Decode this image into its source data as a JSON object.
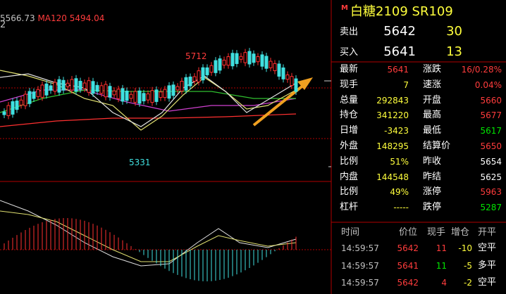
{
  "chart": {
    "axis_cut": "2",
    "ma_label": "5566.73",
    "ma120": "MA120 5494.04",
    "high_label": "5712",
    "low_label": "5331"
  },
  "quote": {
    "marker": "M",
    "title": "白糖2109  SR109",
    "ask": {
      "label": "卖出",
      "price": "5642",
      "volume": "30"
    },
    "bid": {
      "label": "买入",
      "price": "5641",
      "volume": "13"
    }
  },
  "stats": [
    [
      "最新",
      "5641",
      "涨跌",
      "16/0.28%"
    ],
    [
      "现手",
      "7",
      "速涨",
      "0.04%"
    ],
    [
      "总量",
      "292843",
      "开盘",
      "5660"
    ],
    [
      "持仓",
      "341220",
      "最高",
      "5677"
    ],
    [
      "日增",
      "-3423",
      "最低",
      "5617"
    ],
    [
      "外盘",
      "148295",
      "结算价",
      "5650"
    ],
    [
      "比例",
      "51%",
      "昨收",
      "5654"
    ],
    [
      "内盘",
      "144548",
      "昨结",
      "5625"
    ],
    [
      "比例",
      "49%",
      "涨停",
      "5963"
    ],
    [
      "杠杆",
      "-----",
      "跌停",
      "5287"
    ]
  ],
  "trades": {
    "header": [
      "时间",
      "价位",
      "现手",
      "增仓",
      "开平"
    ],
    "rows": [
      [
        "14:59:57",
        "5642",
        "11",
        "-10",
        "空平"
      ],
      [
        "14:59:57",
        "5641",
        "11",
        "-5",
        "多平"
      ],
      [
        "14:59:57",
        "5642",
        "4",
        "-2",
        "空平"
      ]
    ]
  }
}
